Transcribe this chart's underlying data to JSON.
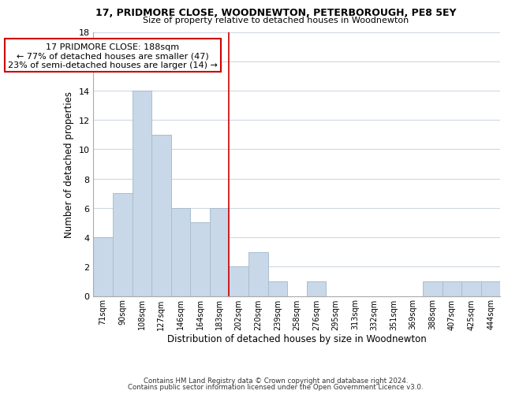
{
  "title": "17, PRIDMORE CLOSE, WOODNEWTON, PETERBOROUGH, PE8 5EY",
  "subtitle": "Size of property relative to detached houses in Woodnewton",
  "xlabel": "Distribution of detached houses by size in Woodnewton",
  "ylabel": "Number of detached properties",
  "bar_labels": [
    "71sqm",
    "90sqm",
    "108sqm",
    "127sqm",
    "146sqm",
    "164sqm",
    "183sqm",
    "202sqm",
    "220sqm",
    "239sqm",
    "258sqm",
    "276sqm",
    "295sqm",
    "313sqm",
    "332sqm",
    "351sqm",
    "369sqm",
    "388sqm",
    "407sqm",
    "425sqm",
    "444sqm"
  ],
  "bar_values": [
    4,
    7,
    14,
    11,
    6,
    5,
    6,
    2,
    3,
    1,
    0,
    1,
    0,
    0,
    0,
    0,
    0,
    1,
    1,
    1,
    1
  ],
  "bar_color": "#c8d8e8",
  "bar_edge_color": "#a8bece",
  "reference_line_index": 6,
  "reference_line_color": "#cc0000",
  "annotation_title": "17 PRIDMORE CLOSE: 188sqm",
  "annotation_line1": "← 77% of detached houses are smaller (47)",
  "annotation_line2": "23% of semi-detached houses are larger (14) →",
  "annotation_box_color": "#ffffff",
  "annotation_box_edge_color": "#cc0000",
  "ylim": [
    0,
    18
  ],
  "yticks": [
    0,
    2,
    4,
    6,
    8,
    10,
    12,
    14,
    16,
    18
  ],
  "footer1": "Contains HM Land Registry data © Crown copyright and database right 2024.",
  "footer2": "Contains public sector information licensed under the Open Government Licence v3.0.",
  "background_color": "#ffffff",
  "grid_color": "#d0d8e0"
}
